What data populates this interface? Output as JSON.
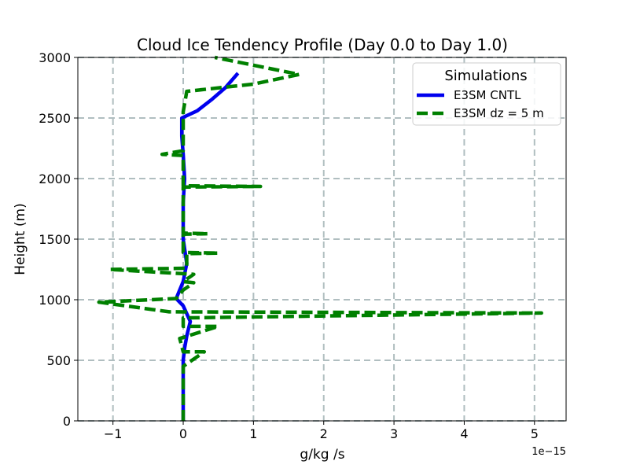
{
  "chart_data": {
    "type": "line",
    "title": "Cloud Ice Tendency Profile (Day 0.0 to Day 1.0)",
    "xlabel": "g/kg /s",
    "ylabel": "Height (m)",
    "x_offset_label": "1e−15",
    "xlim": [
      -1.5,
      5.45
    ],
    "ylim": [
      0,
      3000
    ],
    "x_ticks": [
      -1,
      0,
      1,
      2,
      3,
      4,
      5
    ],
    "x_tick_labels": [
      "−1",
      "0",
      "1",
      "2",
      "3",
      "4",
      "5"
    ],
    "y_ticks": [
      0,
      500,
      1000,
      1500,
      2000,
      2500,
      3000
    ],
    "y_tick_labels": [
      "0",
      "500",
      "1000",
      "1500",
      "2000",
      "2500",
      "3000"
    ],
    "grid": true,
    "legend": {
      "title": "Simulations",
      "placement": "top-right"
    },
    "series": [
      {
        "name": "E3SM CNTL",
        "color": "#0000ee",
        "style": "solid",
        "points": [
          [
            0.0,
            0
          ],
          [
            0.0,
            500
          ],
          [
            0.02,
            600
          ],
          [
            0.05,
            700
          ],
          [
            0.1,
            820
          ],
          [
            0.0,
            950
          ],
          [
            -0.1,
            1010
          ],
          [
            0.0,
            1150
          ],
          [
            0.05,
            1300
          ],
          [
            0.0,
            1500
          ],
          [
            0.0,
            1800
          ],
          [
            0.02,
            2000
          ],
          [
            0.0,
            2200
          ],
          [
            -0.02,
            2350
          ],
          [
            -0.02,
            2500
          ],
          [
            0.2,
            2560
          ],
          [
            0.4,
            2650
          ],
          [
            0.6,
            2750
          ],
          [
            0.78,
            2870
          ]
        ]
      },
      {
        "name": "E3SM dz = 5 m",
        "color": "#008000",
        "style": "dashed",
        "points": [
          [
            0.0,
            0
          ],
          [
            0.0,
            450
          ],
          [
            0.3,
            570
          ],
          [
            0.0,
            570
          ],
          [
            -0.05,
            680
          ],
          [
            0.5,
            780
          ],
          [
            0.0,
            780
          ],
          [
            0.0,
            850
          ],
          [
            5.1,
            890
          ],
          [
            -0.2,
            900
          ],
          [
            -1.2,
            980
          ],
          [
            -0.1,
            1010
          ],
          [
            0.0,
            1080
          ],
          [
            0.15,
            1140
          ],
          [
            0.0,
            1150
          ],
          [
            0.15,
            1210
          ],
          [
            -1.05,
            1250
          ],
          [
            0.05,
            1260
          ],
          [
            0.05,
            1380
          ],
          [
            0.5,
            1385
          ],
          [
            0.0,
            1390
          ],
          [
            0.0,
            1540
          ],
          [
            0.35,
            1545
          ],
          [
            0.0,
            1550
          ],
          [
            0.0,
            1930
          ],
          [
            1.1,
            1935
          ],
          [
            0.0,
            1940
          ],
          [
            0.0,
            2190
          ],
          [
            -0.3,
            2200
          ],
          [
            0.0,
            2230
          ],
          [
            0.0,
            2550
          ],
          [
            0.05,
            2720
          ],
          [
            1.0,
            2780
          ],
          [
            1.65,
            2860
          ],
          [
            0.45,
            3000
          ]
        ]
      }
    ]
  }
}
